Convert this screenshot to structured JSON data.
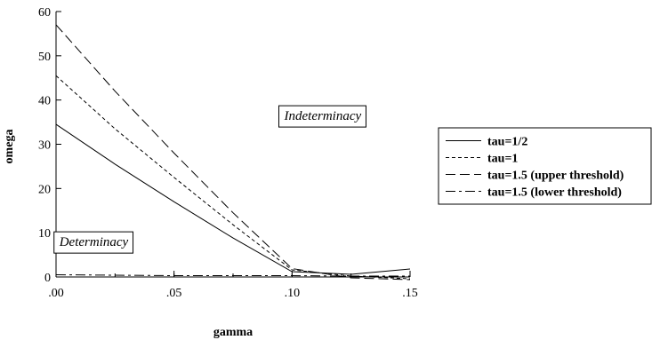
{
  "chart_data": {
    "type": "line",
    "xlabel": "gamma",
    "ylabel": "omega",
    "xlim": [
      0,
      0.15
    ],
    "ylim": [
      0,
      60
    ],
    "xticks": [
      {
        "value": 0,
        "label": ".00"
      },
      {
        "value": 0.05,
        "label": ".05"
      },
      {
        "value": 0.1,
        "label": ".10"
      },
      {
        "value": 0.15,
        "label": ".15"
      }
    ],
    "yticks": [
      {
        "value": 0,
        "label": "0"
      },
      {
        "value": 10,
        "label": "10"
      },
      {
        "value": 20,
        "label": "20"
      },
      {
        "value": 30,
        "label": "30"
      },
      {
        "value": 40,
        "label": "40"
      },
      {
        "value": 50,
        "label": "50"
      },
      {
        "value": 60,
        "label": "60"
      }
    ],
    "grid": false,
    "legend_position": "right",
    "annotations": [
      {
        "text": "Indeterminacy",
        "x": 0.113,
        "y": 36.5,
        "boxed": true
      },
      {
        "text": "Determinacy",
        "x": 0.016,
        "y": 8,
        "boxed": true
      }
    ],
    "series": [
      {
        "name": "tau=1/2",
        "dash": "solid",
        "x": [
          0,
          0.025,
          0.05,
          0.075,
          0.1,
          0.125,
          0.15
        ],
        "y": [
          34.5,
          25.5,
          17,
          8.8,
          1.2,
          0.6,
          1.8
        ]
      },
      {
        "name": "tau=1",
        "dash": "short-dash",
        "x": [
          0,
          0.025,
          0.05,
          0.075,
          0.1,
          0.125,
          0.15
        ],
        "y": [
          45.5,
          33.5,
          22.5,
          11.8,
          1.6,
          0.2,
          -0.4
        ]
      },
      {
        "name": "tau=1.5 (upper threshold)",
        "dash": "long-dash",
        "x": [
          0,
          0.025,
          0.05,
          0.075,
          0.1,
          0.125,
          0.15
        ],
        "y": [
          57,
          42,
          28,
          14.5,
          1.9,
          -0.2,
          -0.6
        ]
      },
      {
        "name": "tau=1.5 (lower threshold)",
        "dash": "dash-dot",
        "x": [
          0,
          0.025,
          0.05,
          0.075,
          0.1,
          0.125,
          0.15
        ],
        "y": [
          0.5,
          0.4,
          0.3,
          0.3,
          0.3,
          0.2,
          0.2
        ]
      }
    ]
  }
}
